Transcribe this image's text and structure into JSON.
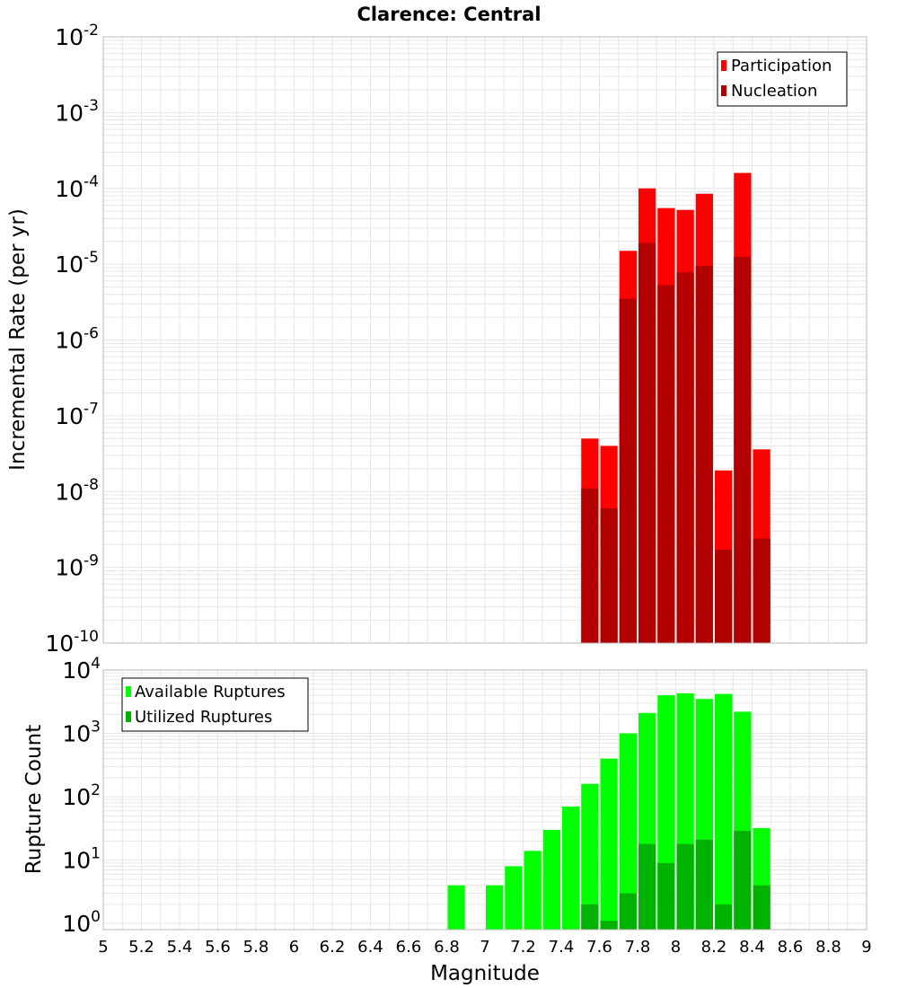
{
  "title": "Clarence: Central",
  "colors": {
    "participation": "#ff0000",
    "nucleation": "#b20000",
    "available": "#00ff00",
    "utilized": "#00b200",
    "grid": "#e6e6e6",
    "frame": "#b8b8b8"
  },
  "chart_data": [
    {
      "type": "bar",
      "ylabel": "Incremental Rate (per yr)",
      "yscale": "log",
      "ylim": [
        1e-10,
        0.01
      ],
      "xlim": [
        5,
        9
      ],
      "grid": true,
      "legend_position": "top-right",
      "y_ticks": [
        {
          "base": "10",
          "exp": "-10"
        },
        {
          "base": "10",
          "exp": "-9"
        },
        {
          "base": "10",
          "exp": "-8"
        },
        {
          "base": "10",
          "exp": "-7"
        },
        {
          "base": "10",
          "exp": "-6"
        },
        {
          "base": "10",
          "exp": "-5"
        },
        {
          "base": "10",
          "exp": "-4"
        },
        {
          "base": "10",
          "exp": "-3"
        },
        {
          "base": "10",
          "exp": "-2"
        }
      ],
      "x": [
        7.55,
        7.65,
        7.75,
        7.85,
        7.95,
        8.05,
        8.15,
        8.25,
        8.35,
        8.45
      ],
      "series": [
        {
          "name": "Participation",
          "values": [
            5e-08,
            4e-08,
            1.5e-05,
            0.0001,
            5.5e-05,
            5.2e-05,
            8.5e-05,
            1.9e-08,
            0.00016,
            3.6e-08
          ]
        },
        {
          "name": "Nucleation",
          "values": [
            1.1e-08,
            6e-09,
            3.5e-06,
            1.9e-05,
            5.3e-06,
            7.8e-06,
            9.5e-06,
            1.7e-09,
            1.25e-05,
            2.4e-09
          ]
        }
      ]
    },
    {
      "type": "bar",
      "ylabel": "Rupture Count",
      "xlabel": "Magnitude",
      "yscale": "log",
      "ylim": [
        0.8,
        10000
      ],
      "xlim": [
        5,
        9
      ],
      "grid": true,
      "legend_position": "top-left",
      "y_ticks": [
        {
          "value": 1,
          "base": "10",
          "exp": "0"
        },
        {
          "value": 10,
          "base": "10",
          "exp": "1"
        },
        {
          "value": 100,
          "base": "10",
          "exp": "2"
        },
        {
          "value": 1000,
          "base": "10",
          "exp": "3"
        },
        {
          "value": 10000,
          "base": "10",
          "exp": "4"
        }
      ],
      "x_ticks": [
        "5",
        "5.2",
        "5.4",
        "5.6",
        "5.8",
        "6",
        "6.2",
        "6.4",
        "6.6",
        "6.8",
        "7",
        "7.2",
        "7.4",
        "7.6",
        "7.8",
        "8",
        "8.2",
        "8.4",
        "8.6",
        "8.8",
        "9"
      ],
      "x": [
        6.85,
        7.05,
        7.15,
        7.25,
        7.35,
        7.45,
        7.55,
        7.65,
        7.75,
        7.85,
        7.95,
        8.05,
        8.15,
        8.25,
        8.35,
        8.45
      ],
      "series": [
        {
          "name": "Available Ruptures",
          "values": [
            4,
            4,
            8,
            14,
            30,
            70,
            160,
            400,
            1000,
            2100,
            4000,
            4300,
            3500,
            4200,
            2200,
            32
          ]
        },
        {
          "name": "Utilized Ruptures",
          "values": [
            null,
            null,
            null,
            null,
            null,
            null,
            2,
            1.1,
            3,
            18,
            9,
            18,
            21,
            2,
            29,
            4
          ]
        }
      ]
    }
  ]
}
